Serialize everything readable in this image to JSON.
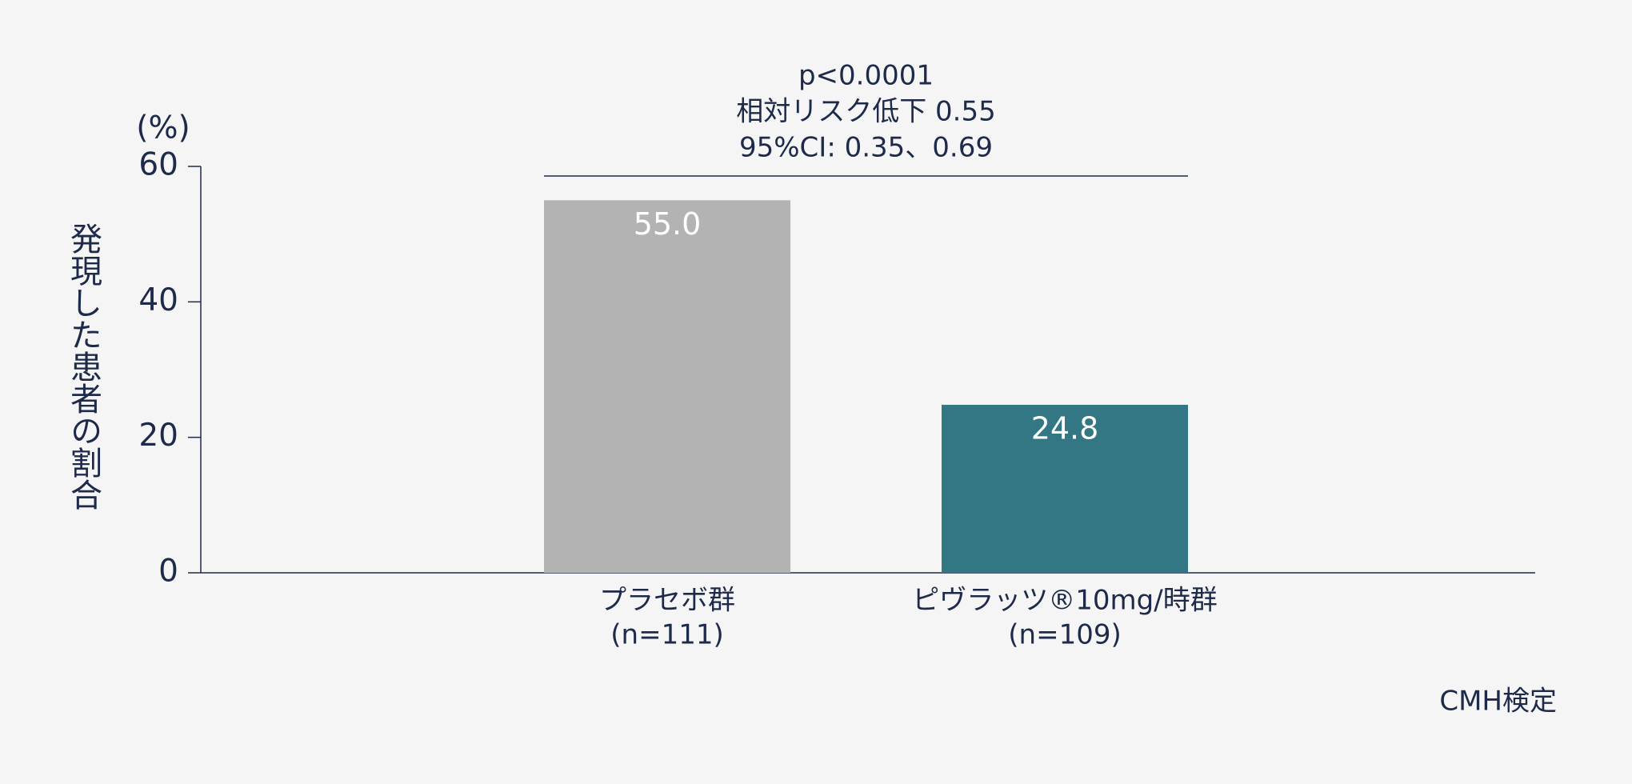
{
  "chart_data": {
    "type": "bar",
    "annotation_lines": [
      "p<0.0001",
      "相対リスク低下 0.55",
      "95%CI: 0.35、0.69"
    ],
    "y_unit": "(%)",
    "ylabel": "発現した患者の割合",
    "categories": [
      "プラセボ群",
      "ピヴラッツ®10mg/時群"
    ],
    "category_sublabels": [
      "(n=111)",
      "(n=109)"
    ],
    "values": [
      55.0,
      24.8
    ],
    "value_labels": [
      "55.0",
      "24.8"
    ],
    "colors": [
      "#b3b3b3",
      "#327783"
    ],
    "ylim": [
      0,
      60
    ],
    "yticks": [
      0,
      20,
      40,
      60
    ],
    "footnote": "CMH検定"
  }
}
